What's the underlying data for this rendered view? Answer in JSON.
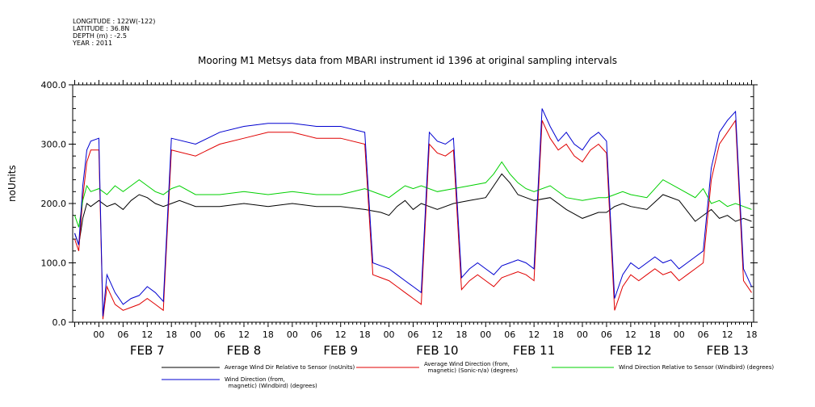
{
  "header": {
    "longitude": "LONGITUDE : 122W(-122)",
    "latitude": "LATITUDE : 36.8N",
    "depth": "DEPTH (m) : -2.5",
    "year": "YEAR : 2011"
  },
  "chart_data": {
    "type": "line",
    "title": "Mooring M1 Metsys data from MBARI instrument id 1396 at original sampling intervals",
    "ylabel": "noUnits",
    "xlabel": "",
    "ylim": [
      0,
      400
    ],
    "yticks": [
      0,
      100,
      200,
      300,
      400
    ],
    "xlim_hours": [
      -6.5,
      162.5
    ],
    "hour_tick_labels": [
      "00",
      "06",
      "12",
      "18"
    ],
    "day_labels": [
      "FEB  7",
      "FEB  8",
      "FEB  9",
      "FEB 10",
      "FEB 11",
      "FEB 12",
      "FEB 13"
    ],
    "grid": false,
    "series": [
      {
        "name": "Average Wind Dir Relative to Sensor (noUnits)",
        "color": "#000000",
        "x": [
          -6,
          -5,
          -4,
          -3,
          -2,
          0,
          2,
          4,
          6,
          8,
          10,
          12,
          14,
          16,
          18,
          20,
          24,
          30,
          36,
          42,
          48,
          54,
          60,
          66,
          70,
          72,
          74,
          76,
          78,
          80,
          84,
          88,
          92,
          96,
          98,
          100,
          102,
          104,
          106,
          108,
          112,
          116,
          120,
          124,
          126,
          128,
          130,
          132,
          136,
          140,
          144,
          148,
          152,
          154,
          156,
          158,
          160,
          162
        ],
        "y": [
          150,
          130,
          175,
          200,
          195,
          205,
          195,
          200,
          190,
          205,
          215,
          210,
          200,
          195,
          200,
          205,
          195,
          195,
          200,
          195,
          200,
          195,
          195,
          190,
          185,
          180,
          195,
          205,
          190,
          200,
          190,
          200,
          205,
          210,
          230,
          250,
          235,
          215,
          210,
          205,
          210,
          190,
          175,
          185,
          185,
          195,
          200,
          195,
          190,
          215,
          205,
          170,
          190,
          175,
          180,
          170,
          175,
          170
        ]
      },
      {
        "name": "Average Wind Direction (from, magnetic) (Sonic-n/a) (degrees)",
        "color": "#e00000",
        "x": [
          -6,
          -5,
          -4,
          -3,
          -2,
          0,
          1,
          2,
          4,
          6,
          8,
          10,
          12,
          14,
          16,
          18,
          24,
          30,
          36,
          42,
          48,
          54,
          60,
          66,
          68,
          70,
          72,
          74,
          76,
          78,
          80,
          82,
          84,
          86,
          88,
          90,
          92,
          94,
          96,
          98,
          100,
          102,
          104,
          106,
          108,
          110,
          112,
          114,
          116,
          118,
          120,
          122,
          124,
          126,
          128,
          130,
          132,
          134,
          136,
          138,
          140,
          142,
          144,
          146,
          148,
          150,
          152,
          154,
          156,
          158,
          160,
          162
        ],
        "y": [
          140,
          120,
          210,
          270,
          290,
          290,
          5,
          60,
          30,
          20,
          25,
          30,
          40,
          30,
          20,
          290,
          280,
          300,
          310,
          320,
          320,
          310,
          310,
          300,
          80,
          75,
          70,
          60,
          50,
          40,
          30,
          300,
          285,
          280,
          290,
          55,
          70,
          80,
          70,
          60,
          75,
          80,
          85,
          80,
          70,
          340,
          310,
          290,
          300,
          280,
          270,
          290,
          300,
          285,
          20,
          60,
          80,
          70,
          80,
          90,
          80,
          85,
          70,
          80,
          90,
          100,
          240,
          300,
          320,
          340,
          70,
          50
        ]
      },
      {
        "name": "Wind Direction Relative to Sensor (Windbird) (degrees)",
        "color": "#00d000",
        "x": [
          -6,
          -5,
          -4,
          -3,
          -2,
          0,
          2,
          4,
          6,
          8,
          10,
          12,
          14,
          16,
          18,
          20,
          24,
          30,
          36,
          42,
          48,
          54,
          60,
          66,
          70,
          72,
          74,
          76,
          78,
          80,
          84,
          88,
          92,
          96,
          98,
          100,
          102,
          104,
          106,
          108,
          112,
          116,
          120,
          124,
          126,
          128,
          130,
          132,
          136,
          140,
          144,
          148,
          150,
          152,
          154,
          156,
          158,
          160,
          162
        ],
        "y": [
          180,
          160,
          205,
          230,
          220,
          225,
          215,
          230,
          220,
          230,
          240,
          230,
          220,
          215,
          225,
          230,
          215,
          215,
          220,
          215,
          220,
          215,
          215,
          225,
          215,
          210,
          220,
          230,
          225,
          230,
          220,
          225,
          230,
          235,
          250,
          270,
          250,
          235,
          225,
          220,
          230,
          210,
          205,
          210,
          210,
          215,
          220,
          215,
          210,
          240,
          225,
          210,
          225,
          200,
          205,
          195,
          200,
          195,
          190
        ]
      },
      {
        "name": "Wind Direction (from, magnetic) (Windbird) (degrees)",
        "color": "#0000d0",
        "x": [
          -6,
          -5,
          -4,
          -3,
          -2,
          0,
          1,
          2,
          4,
          6,
          8,
          10,
          12,
          14,
          16,
          18,
          24,
          30,
          36,
          42,
          48,
          54,
          60,
          66,
          68,
          70,
          72,
          74,
          76,
          78,
          80,
          82,
          84,
          86,
          88,
          90,
          92,
          94,
          96,
          98,
          100,
          102,
          104,
          106,
          108,
          110,
          112,
          114,
          116,
          118,
          120,
          122,
          124,
          126,
          128,
          130,
          132,
          134,
          136,
          138,
          140,
          142,
          144,
          146,
          148,
          150,
          152,
          154,
          156,
          158,
          160,
          162
        ],
        "y": [
          150,
          130,
          230,
          290,
          305,
          310,
          10,
          80,
          50,
          30,
          40,
          45,
          60,
          50,
          35,
          310,
          300,
          320,
          330,
          335,
          335,
          330,
          330,
          320,
          100,
          95,
          90,
          80,
          70,
          60,
          50,
          320,
          305,
          300,
          310,
          75,
          90,
          100,
          90,
          80,
          95,
          100,
          105,
          100,
          90,
          360,
          330,
          305,
          320,
          300,
          290,
          310,
          320,
          305,
          40,
          80,
          100,
          90,
          100,
          110,
          100,
          105,
          90,
          100,
          110,
          120,
          260,
          320,
          340,
          355,
          90,
          60
        ]
      }
    ]
  },
  "legend": [
    {
      "label": "Average Wind Dir Relative to Sensor (noUnits)",
      "color": "#000000"
    },
    {
      "label": "Average Wind Direction (from,\n  magnetic) (Sonic-n/a) (degrees)",
      "color": "#e00000"
    },
    {
      "label": "Wind Direction Relative to Sensor (Windbird) (degrees)",
      "color": "#00d000"
    },
    {
      "label": "Wind Direction (from,\n  magnetic) (Windbird) (degrees)",
      "color": "#0000d0"
    }
  ]
}
